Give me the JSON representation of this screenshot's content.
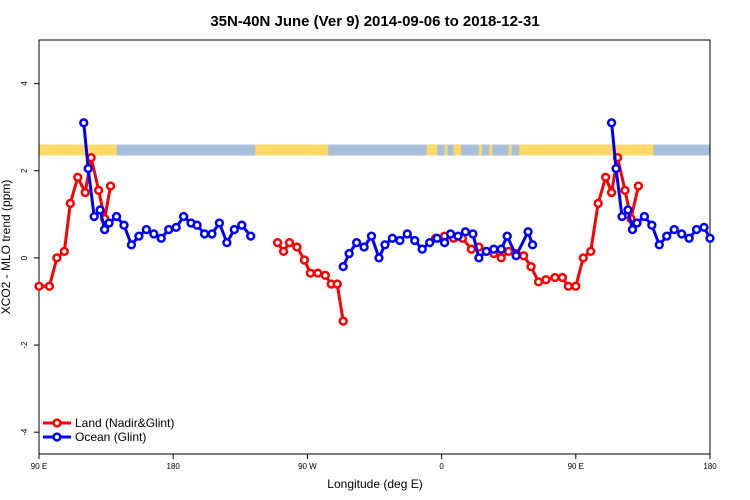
{
  "chart_data": {
    "type": "line",
    "title": "35N-40N June (Ver 9)   2014-09-06 to 2018-12-31",
    "xlabel": "Longitude (deg E)",
    "ylabel": "XCO2 - MLO trend (ppm)",
    "xlim": [
      90,
      540
    ],
    "ylim": [
      -4.5,
      5.0
    ],
    "xticks": [
      {
        "value": 90,
        "label": "90 E"
      },
      {
        "value": 180,
        "label": "180"
      },
      {
        "value": 270,
        "label": "90 W"
      },
      {
        "value": 360,
        "label": "0"
      },
      {
        "value": 450,
        "label": "90 E"
      },
      {
        "value": 540,
        "label": "180"
      }
    ],
    "yticks": [
      {
        "value": -4,
        "label": "-4"
      },
      {
        "value": -2,
        "label": "-2"
      },
      {
        "value": 0,
        "label": "0"
      },
      {
        "value": 2,
        "label": "2"
      },
      {
        "value": 4,
        "label": "4"
      }
    ],
    "legend": {
      "position": "bottom-left",
      "entries": [
        {
          "label": "Land (Nadir&Glint)",
          "color": "#ff0000"
        },
        {
          "label": "Ocean (Glint)",
          "color": "#0000ff"
        }
      ]
    },
    "landmask": {
      "y_range": [
        2.35,
        2.6
      ],
      "land_color": "#ffd966",
      "ocean_color": "#a8bfdc",
      "land_spans": [
        [
          90,
          142
        ],
        [
          235,
          284
        ],
        [
          350,
          357
        ],
        [
          362,
          364
        ],
        [
          368,
          373
        ],
        [
          385,
          387
        ],
        [
          392,
          394
        ],
        [
          405,
          407
        ],
        [
          412,
          502
        ]
      ]
    },
    "series": [
      {
        "name": "Land (Nadir&Glint)",
        "color": "#ff0000",
        "points": [
          [
            90,
            -0.65
          ],
          [
            97,
            -0.65
          ],
          [
            102,
            0.0
          ],
          [
            107,
            0.15
          ],
          [
            111,
            1.25
          ],
          [
            116,
            1.85
          ],
          [
            121,
            1.5
          ],
          [
            125,
            2.3
          ],
          [
            130,
            1.55
          ],
          [
            134,
            0.9
          ],
          [
            138,
            1.65
          ],
          [
            250,
            0.35
          ],
          [
            254,
            0.15
          ],
          [
            258,
            0.35
          ],
          [
            263,
            0.25
          ],
          [
            268,
            -0.05
          ],
          [
            272,
            -0.35
          ],
          [
            277,
            -0.35
          ],
          [
            282,
            -0.4
          ],
          [
            286,
            -0.6
          ],
          [
            290,
            -0.6
          ],
          [
            294,
            -1.45
          ],
          [
            356,
            0.45
          ],
          [
            362,
            0.5
          ],
          [
            368,
            0.45
          ],
          [
            374,
            0.45
          ],
          [
            380,
            0.2
          ],
          [
            385,
            0.25
          ],
          [
            390,
            0.15
          ],
          [
            395,
            0.1
          ],
          [
            400,
            0.0
          ],
          [
            405,
            0.15
          ],
          [
            410,
            0.1
          ],
          [
            415,
            0.05
          ],
          [
            420,
            -0.2
          ],
          [
            425,
            -0.55
          ],
          [
            430,
            -0.5
          ],
          [
            436,
            -0.45
          ],
          [
            441,
            -0.45
          ],
          [
            445,
            -0.65
          ],
          [
            450,
            -0.65
          ],
          [
            455,
            0.0
          ],
          [
            460,
            0.15
          ],
          [
            465,
            1.25
          ],
          [
            470,
            1.85
          ],
          [
            474,
            1.5
          ],
          [
            478,
            2.3
          ],
          [
            483,
            1.55
          ],
          [
            487,
            0.9
          ],
          [
            492,
            1.65
          ]
        ]
      },
      {
        "name": "Ocean (Glint)",
        "color": "#0000ff",
        "points": [
          [
            120,
            3.1
          ],
          [
            123,
            2.05
          ],
          [
            127,
            0.95
          ],
          [
            131,
            1.1
          ],
          [
            134,
            0.65
          ],
          [
            137,
            0.8
          ],
          [
            142,
            0.95
          ],
          [
            147,
            0.75
          ],
          [
            152,
            0.3
          ],
          [
            157,
            0.5
          ],
          [
            162,
            0.65
          ],
          [
            167,
            0.55
          ],
          [
            172,
            0.45
          ],
          [
            177,
            0.65
          ],
          [
            182,
            0.7
          ],
          [
            187,
            0.95
          ],
          [
            192,
            0.8
          ],
          [
            196,
            0.75
          ],
          [
            201,
            0.55
          ],
          [
            206,
            0.55
          ],
          [
            211,
            0.8
          ],
          [
            216,
            0.35
          ],
          [
            221,
            0.65
          ],
          [
            226,
            0.75
          ],
          [
            232,
            0.5
          ],
          [
            294,
            -0.2
          ],
          [
            298,
            0.1
          ],
          [
            303,
            0.35
          ],
          [
            308,
            0.25
          ],
          [
            313,
            0.5
          ],
          [
            318,
            0.0
          ],
          [
            322,
            0.3
          ],
          [
            327,
            0.45
          ],
          [
            332,
            0.4
          ],
          [
            337,
            0.55
          ],
          [
            342,
            0.4
          ],
          [
            347,
            0.2
          ],
          [
            352,
            0.35
          ],
          [
            357,
            0.45
          ],
          [
            362,
            0.35
          ],
          [
            366,
            0.55
          ],
          [
            371,
            0.5
          ],
          [
            376,
            0.6
          ],
          [
            381,
            0.55
          ],
          [
            385,
            0.0
          ],
          [
            390,
            0.15
          ],
          [
            395,
            0.2
          ],
          [
            400,
            0.2
          ],
          [
            404,
            0.5
          ],
          [
            410,
            0.05
          ],
          [
            418,
            0.6
          ],
          [
            421,
            0.3
          ],
          [
            474,
            3.1
          ],
          [
            477,
            2.05
          ],
          [
            481,
            0.95
          ],
          [
            485,
            1.1
          ],
          [
            488,
            0.65
          ],
          [
            491,
            0.8
          ],
          [
            496,
            0.95
          ],
          [
            501,
            0.75
          ],
          [
            506,
            0.3
          ],
          [
            511,
            0.5
          ],
          [
            516,
            0.65
          ],
          [
            521,
            0.55
          ],
          [
            526,
            0.45
          ],
          [
            531,
            0.65
          ],
          [
            536,
            0.7
          ],
          [
            540,
            0.45
          ]
        ]
      }
    ]
  }
}
